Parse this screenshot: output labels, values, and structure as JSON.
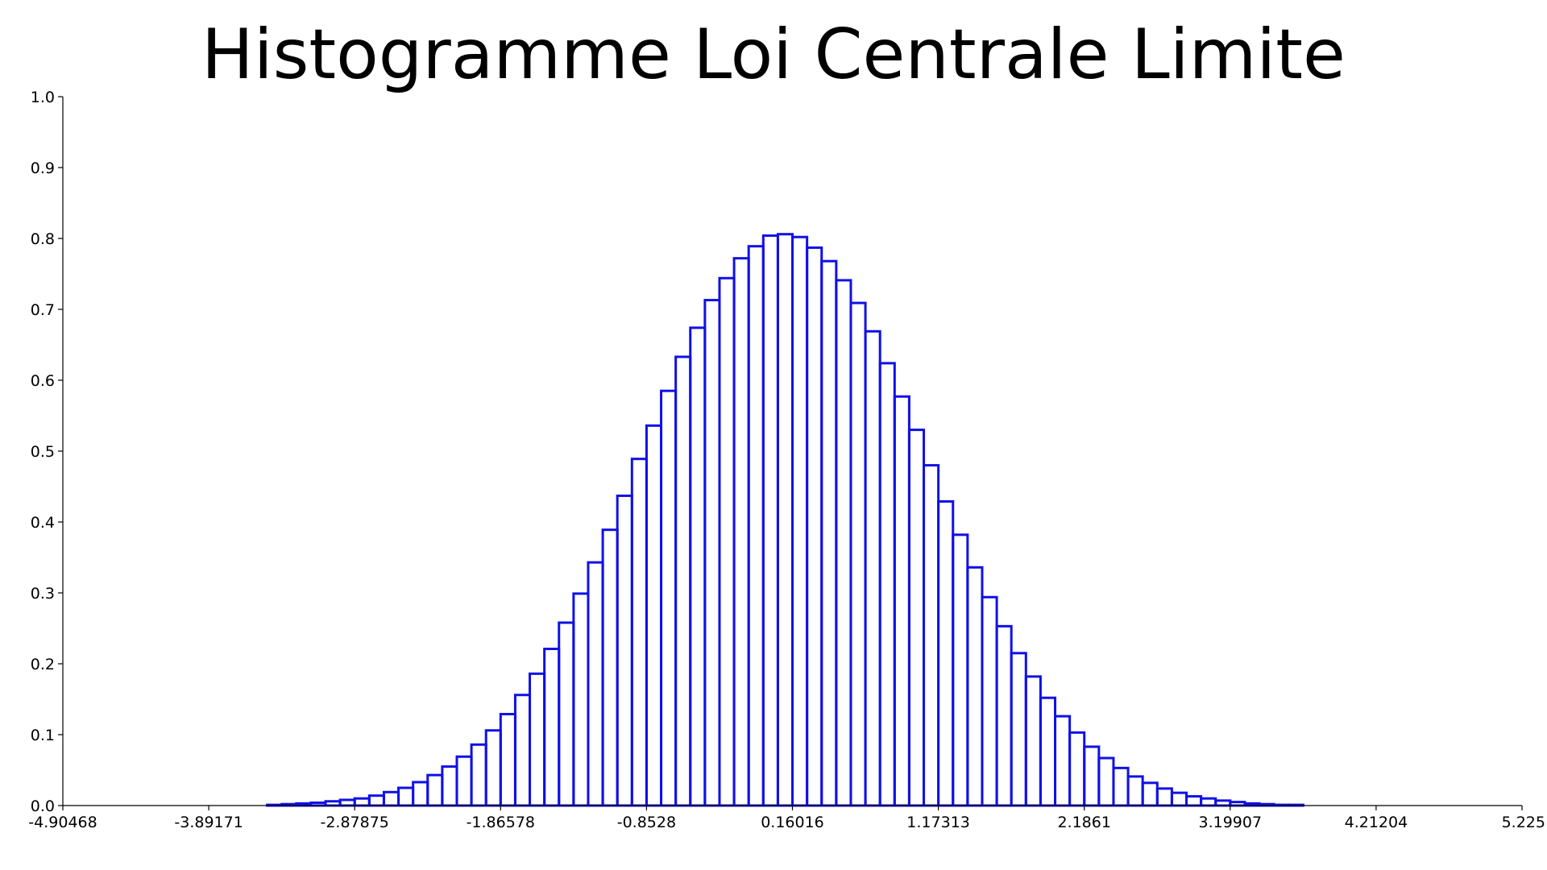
{
  "chart_data": {
    "type": "bar",
    "title": "Histogramme Loi Centrale Limite",
    "xlabel": "",
    "ylabel": "",
    "xlim": [
      -4.90468,
      5.225
    ],
    "ylim": [
      0.0,
      1.0
    ],
    "grid": false,
    "series_color": "#1010e8",
    "x_ticks": [
      "-4.90468",
      "-3.89171",
      "-2.87875",
      "-1.86578",
      "-0.8528",
      "0.16016",
      "1.17313",
      "2.1861",
      "3.19907",
      "4.21204",
      "5.225"
    ],
    "y_ticks": [
      "0.0",
      "0.1",
      "0.2",
      "0.3",
      "0.4",
      "0.5",
      "0.6",
      "0.7",
      "0.8",
      "0.9",
      "1.0"
    ],
    "bin_width": 0.1013,
    "bin_start": -4.90468,
    "values": [
      0,
      0,
      0,
      0,
      0,
      0,
      0,
      0,
      0,
      0,
      0,
      0,
      0,
      0,
      0.001,
      0.002,
      0.003,
      0.004,
      0.006,
      0.008,
      0.01,
      0.014,
      0.019,
      0.025,
      0.033,
      0.043,
      0.055,
      0.069,
      0.086,
      0.106,
      0.129,
      0.156,
      0.186,
      0.221,
      0.258,
      0.299,
      0.343,
      0.389,
      0.437,
      0.489,
      0.536,
      0.585,
      0.633,
      0.674,
      0.713,
      0.744,
      0.772,
      0.789,
      0.804,
      0.806,
      0.802,
      0.787,
      0.768,
      0.741,
      0.709,
      0.669,
      0.624,
      0.577,
      0.53,
      0.48,
      0.429,
      0.382,
      0.336,
      0.294,
      0.253,
      0.215,
      0.182,
      0.152,
      0.126,
      0.103,
      0.083,
      0.067,
      0.053,
      0.041,
      0.032,
      0.024,
      0.018,
      0.013,
      0.01,
      0.007,
      0.005,
      0.003,
      0.002,
      0.001,
      0.001,
      0,
      0,
      0,
      0,
      0,
      0,
      0,
      0,
      0,
      0,
      0,
      0,
      0,
      0,
      0
    ]
  }
}
